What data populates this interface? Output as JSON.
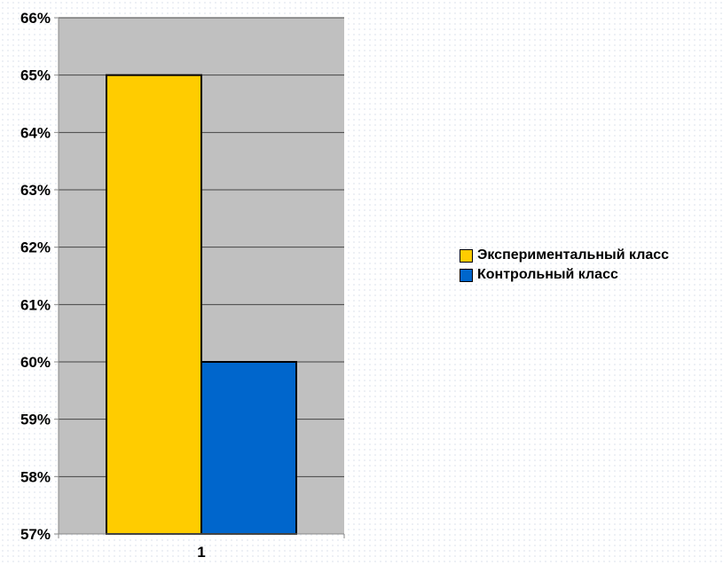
{
  "chart_data": {
    "type": "bar",
    "categories": [
      "1"
    ],
    "series": [
      {
        "name": "Экспериментальный класс",
        "values": [
          65
        ],
        "color": "#FFCC00"
      },
      {
        "name": "Контрольный класс",
        "values": [
          60
        ],
        "color": "#0066CC"
      }
    ],
    "y_tick_labels": [
      "57%",
      "58%",
      "59%",
      "60%",
      "61%",
      "62%",
      "63%",
      "64%",
      "65%",
      "66%"
    ],
    "ylim": [
      57,
      66
    ],
    "y_unit": "%",
    "grid": true,
    "legend_position": "right",
    "plot_background": "#C0C0C0",
    "title": "",
    "xlabel": "",
    "ylabel": ""
  }
}
